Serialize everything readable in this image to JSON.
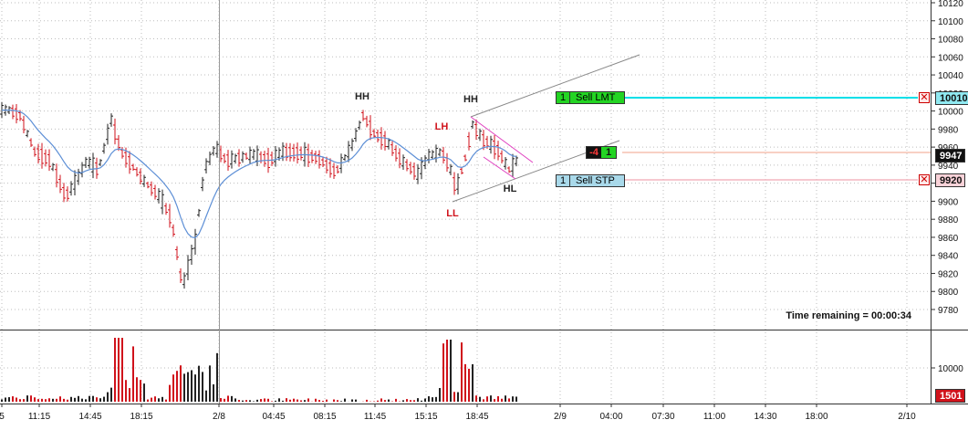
{
  "colors": {
    "sell_lmt": "#00dfe8",
    "sell_stp": "#f4b6c0",
    "last_price": "#f2a08a",
    "up_bar": "#222222",
    "down_bar": "#d0121b",
    "ema": "#5d8fd6",
    "channel": "#888888",
    "wedge": "#e040c0",
    "grid": "#bdbdbd"
  },
  "price_axis": {
    "ticks": [
      "10120",
      "10100",
      "10080",
      "10060",
      "10040",
      "10020",
      "10000",
      "9980",
      "9960",
      "9940",
      "9920",
      "9900",
      "9880",
      "9860",
      "9840",
      "9820",
      "9800",
      "9780"
    ]
  },
  "volume_axis": {
    "tick": "10000",
    "current": "1501"
  },
  "time_axis": {
    "labels": [
      "5",
      "11:15",
      "14:45",
      "18:15",
      "2/8",
      "04:45",
      "08:15",
      "11:45",
      "15:15",
      "18:45",
      "2/9",
      "04:00",
      "07:30",
      "11:00",
      "14:30",
      "18:00",
      "2/10"
    ]
  },
  "annotations": {
    "hh1": "HH",
    "hh2": "HH",
    "lh": "LH",
    "ll": "LL",
    "hl": "HL"
  },
  "orders": {
    "sell_lmt": {
      "qty": "1",
      "label": "Sell LMT",
      "price": "10010"
    },
    "sell_stp": {
      "qty": "1",
      "label": "Sell STP",
      "price": "9920"
    }
  },
  "position": {
    "size": "-4",
    "qty": "1"
  },
  "last_price": "9947",
  "time_remaining": "Time remaining = 00:00:34"
}
